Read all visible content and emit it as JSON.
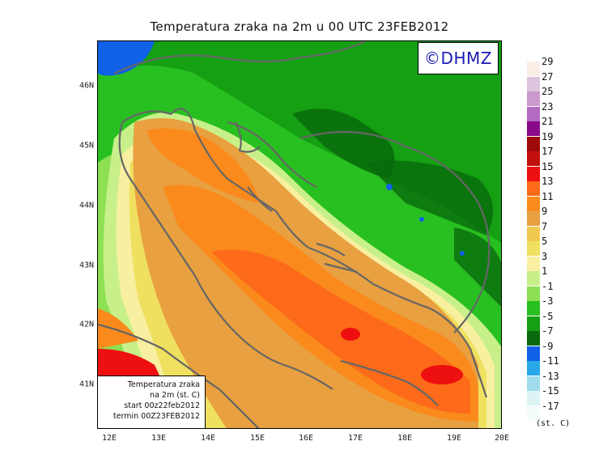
{
  "title": "Temperatura zraka na 2m u 00 UTC 23FEB2012",
  "logo": "©DHMZ",
  "info": {
    "line1": "Temperatura zraka",
    "line2": "na 2m (st. C)",
    "line3": "start 00z22feb2012",
    "line4": "termin 00Z23FEB2012"
  },
  "y_axis": [
    "46N",
    "45N",
    "44N",
    "43N",
    "42N",
    "41N"
  ],
  "x_axis": [
    "12E",
    "13E",
    "14E",
    "15E",
    "16E",
    "17E",
    "18E",
    "19E",
    "20E"
  ],
  "legend": {
    "labels": [
      "29",
      "27",
      "25",
      "23",
      "21",
      "19",
      "17",
      "15",
      "13",
      "11",
      "9",
      "7",
      "5",
      "3",
      "1",
      "-1",
      "-3",
      "-5",
      "-7",
      "-9",
      "-11",
      "-13",
      "-15",
      "-17"
    ],
    "colors": [
      "#fbeee6",
      "#ddc4dc",
      "#cc99cc",
      "#b36ac1",
      "#8a0a8a",
      "#9e0a0a",
      "#c4100c",
      "#ee1010",
      "#fc6a1a",
      "#fa8a1c",
      "#e8a040",
      "#f0c850",
      "#f0e060",
      "#f8f0a0",
      "#c8f08a",
      "#8ce052",
      "#28c020",
      "#14a012",
      "#086a0c",
      "#1060e8",
      "#28a8e8",
      "#a0dcec",
      "#dcf4f4",
      "#f4fcfc"
    ],
    "units": "(st. C)"
  },
  "map": {
    "colors": {
      "cold_blue": "#1060e8",
      "dark_green": "#086a0c",
      "green": "#14a012",
      "light_green": "#28c020",
      "pale_green": "#8ce052",
      "yellow_green": "#c8f08a",
      "pale_yellow": "#f8f0a0",
      "yellow": "#f0e060",
      "tan": "#e8a040",
      "orange": "#fa8a1c",
      "orange_red": "#fc6a1a",
      "red": "#ee1010",
      "coast": "#666666"
    }
  }
}
